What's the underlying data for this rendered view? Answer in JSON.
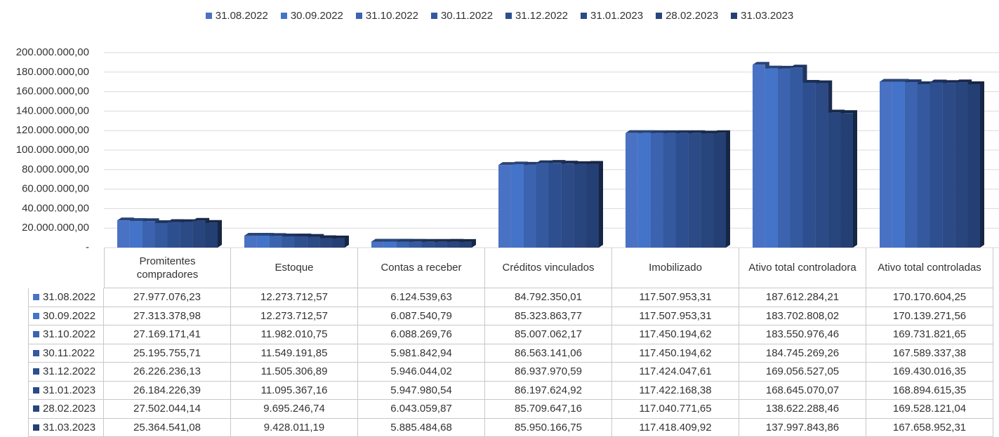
{
  "chart_data": {
    "type": "bar",
    "categories": [
      "Promitentes compradores",
      "Estoque",
      "Contas a receber",
      "Créditos vinculados",
      "Imobilizado",
      "Ativo total controladora",
      "Ativo total controladas"
    ],
    "series": [
      {
        "name": "31.08.2022",
        "color": "#4a72c4",
        "values": [
          27977076.23,
          12273712.57,
          6124539.63,
          84792350.01,
          117507953.31,
          187612284.21,
          170170604.25
        ],
        "value_labels": [
          "27.977.076,23",
          "12.273.712,57",
          "6.124.539,63",
          "84.792.350,01",
          "117.507.953,31",
          "187.612.284,21",
          "170.170.604,25"
        ]
      },
      {
        "name": "30.09.2022",
        "color": "#4474c9",
        "values": [
          27313378.98,
          12273712.57,
          6087540.79,
          85323863.77,
          117507953.31,
          183702808.02,
          170139271.56
        ],
        "value_labels": [
          "27.313.378,98",
          "12.273.712,57",
          "6.087.540,79",
          "85.323.863,77",
          "117.507.953,31",
          "183.702.808,02",
          "170.139.271,56"
        ]
      },
      {
        "name": "31.10.2022",
        "color": "#3b63b0",
        "values": [
          27169171.41,
          11982010.75,
          6088269.76,
          85007062.17,
          117450194.62,
          183550976.46,
          169731821.65
        ],
        "value_labels": [
          "27.169.171,41",
          "11.982.010,75",
          "6.088.269,76",
          "85.007.062,17",
          "117.450.194,62",
          "183.550.976,46",
          "169.731.821,65"
        ]
      },
      {
        "name": "30.11.2022",
        "color": "#34599f",
        "values": [
          25195755.71,
          11549191.85,
          5981842.94,
          86563141.06,
          117450194.62,
          184745269.26,
          167589337.38
        ],
        "value_labels": [
          "25.195.755,71",
          "11.549.191,85",
          "5.981.842,94",
          "86.563.141,06",
          "117.450.194,62",
          "184.745.269,26",
          "167.589.337,38"
        ]
      },
      {
        "name": "31.12.2022",
        "color": "#2e4f8f",
        "values": [
          26226236.13,
          11505306.89,
          5946044.02,
          86937970.59,
          117424047.61,
          169056527.05,
          169430016.35
        ],
        "value_labels": [
          "26.226.236,13",
          "11.505.306,89",
          "5.946.044,02",
          "86.937.970,59",
          "117.424.047,61",
          "169.056.527,05",
          "169.430.016,35"
        ]
      },
      {
        "name": "31.01.2023",
        "color": "#2b4a86",
        "values": [
          26184226.39,
          11095367.16,
          5947980.54,
          86197624.92,
          117422168.38,
          168645070.07,
          168894615.35
        ],
        "value_labels": [
          "26.184.226,39",
          "11.095.367,16",
          "5.947.980,54",
          "86.197.624,92",
          "117.422.168,38",
          "168.645.070,07",
          "168.894.615,35"
        ]
      },
      {
        "name": "28.02.2023",
        "color": "#28457d",
        "values": [
          27502044.14,
          9695246.74,
          6043059.87,
          85709647.16,
          117040771.65,
          138622288.46,
          169528121.04
        ],
        "value_labels": [
          "27.502.044,14",
          "9.695.246,74",
          "6.043.059,87",
          "85.709.647,16",
          "117.040.771,65",
          "138.622.288,46",
          "169.528.121,04"
        ]
      },
      {
        "name": "31.03.2023",
        "color": "#243f73",
        "values": [
          25364541.08,
          9428011.19,
          5885484.68,
          85950166.75,
          117418409.92,
          137997843.86,
          167658952.31
        ],
        "value_labels": [
          "25.364.541,08",
          "9.428.011,19",
          "5.885.484,68",
          "85.950.166,75",
          "117.418.409,92",
          "137.997.843,86",
          "167.658.952,31"
        ]
      }
    ],
    "ylim": [
      0,
      200000000
    ],
    "yticks": [
      {
        "value": 0,
        "label": "-"
      },
      {
        "value": 20000000,
        "label": "20.000.000,00"
      },
      {
        "value": 40000000,
        "label": "40.000.000,00"
      },
      {
        "value": 60000000,
        "label": "60.000.000,00"
      },
      {
        "value": 80000000,
        "label": "80.000.000,00"
      },
      {
        "value": 100000000,
        "label": "100.000.000,00"
      },
      {
        "value": 120000000,
        "label": "120.000.000,00"
      },
      {
        "value": 140000000,
        "label": "140.000.000,00"
      },
      {
        "value": 160000000,
        "label": "160.000.000,00"
      },
      {
        "value": 180000000,
        "label": "180.000.000,00"
      },
      {
        "value": 200000000,
        "label": "200.000.000,00"
      }
    ],
    "grid": true,
    "legend": "top"
  }
}
